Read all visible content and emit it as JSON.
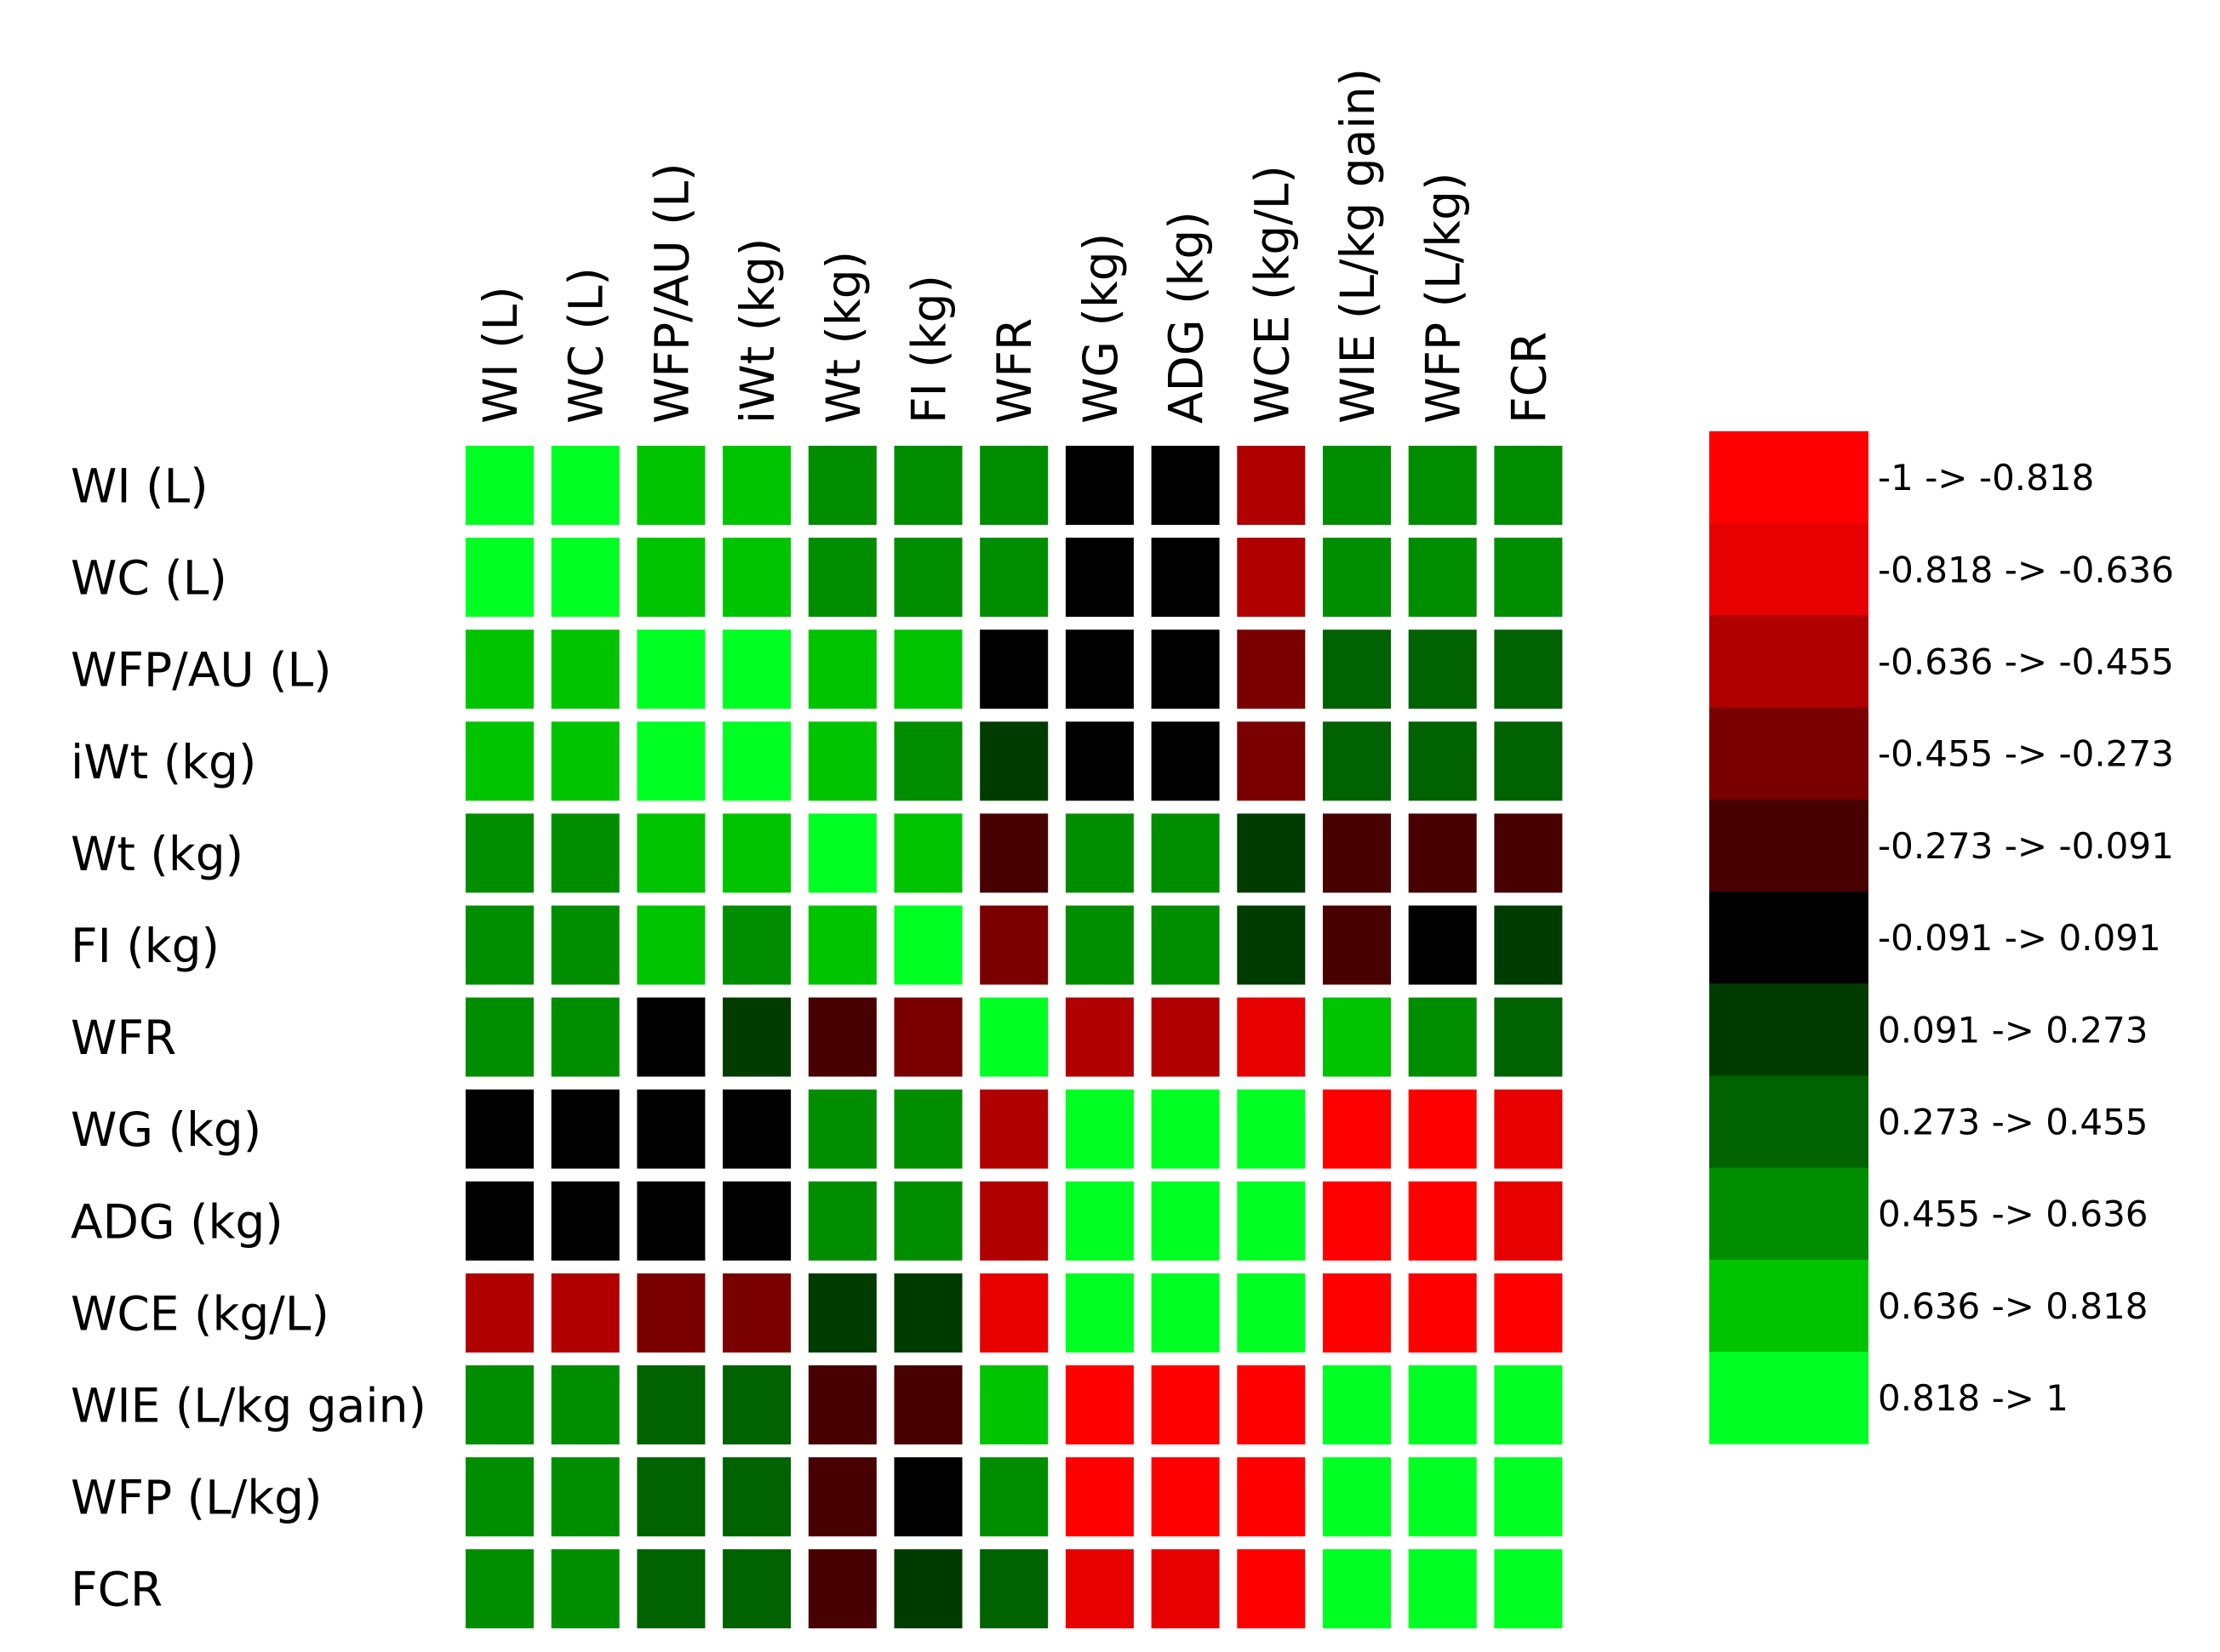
{
  "chart_data": {
    "type": "heatmap",
    "title": "",
    "xlabel": "",
    "ylabel": "",
    "columns": [
      "WI (L)",
      "WC (L)",
      "WFP/AU (L)",
      "iWt (kg)",
      "Wt (kg)",
      "FI (kg)",
      "WFR",
      "WG (kg)",
      "ADG (kg)",
      "WCE (kg/L)",
      "WIE (L/kg gain)",
      "WFP (L/kg)",
      "FCR"
    ],
    "rows": [
      "WI (L)",
      "WC (L)",
      "WFP/AU (L)",
      "iWt (kg)",
      "Wt (kg)",
      "FI (kg)",
      "WFR",
      "WG (kg)",
      "ADG (kg)",
      "WCE (kg/L)",
      "WIE (L/kg gain)",
      "WFP (L/kg)",
      "FCR"
    ],
    "values": [
      [
        0.91,
        0.91,
        0.73,
        0.73,
        0.55,
        0.55,
        0.55,
        0.0,
        0.0,
        -0.55,
        0.55,
        0.55,
        0.55
      ],
      [
        0.91,
        0.91,
        0.73,
        0.73,
        0.55,
        0.55,
        0.55,
        0.0,
        0.0,
        -0.55,
        0.55,
        0.55,
        0.55
      ],
      [
        0.73,
        0.73,
        0.91,
        0.91,
        0.73,
        0.73,
        0.0,
        0.0,
        0.0,
        -0.36,
        0.36,
        0.36,
        0.36
      ],
      [
        0.73,
        0.73,
        0.91,
        0.91,
        0.73,
        0.55,
        0.18,
        0.0,
        0.0,
        -0.36,
        0.36,
        0.36,
        0.36
      ],
      [
        0.55,
        0.55,
        0.73,
        0.73,
        0.91,
        0.73,
        -0.18,
        0.55,
        0.55,
        0.18,
        -0.18,
        -0.18,
        -0.18
      ],
      [
        0.55,
        0.55,
        0.73,
        0.55,
        0.73,
        0.91,
        -0.36,
        0.55,
        0.55,
        0.18,
        -0.18,
        0.0,
        0.18
      ],
      [
        0.55,
        0.55,
        0.0,
        0.18,
        -0.18,
        -0.36,
        0.91,
        -0.55,
        -0.55,
        -0.73,
        0.73,
        0.55,
        0.36
      ],
      [
        0.0,
        0.0,
        0.0,
        0.0,
        0.55,
        0.55,
        -0.55,
        0.91,
        0.91,
        0.91,
        -0.91,
        -0.91,
        -0.73
      ],
      [
        0.0,
        0.0,
        0.0,
        0.0,
        0.55,
        0.55,
        -0.55,
        0.91,
        0.91,
        0.91,
        -0.91,
        -0.91,
        -0.73
      ],
      [
        -0.55,
        -0.55,
        -0.36,
        -0.36,
        0.18,
        0.18,
        -0.73,
        0.91,
        0.91,
        0.91,
        -0.91,
        -0.91,
        -0.91
      ],
      [
        0.55,
        0.55,
        0.36,
        0.36,
        -0.18,
        -0.18,
        0.73,
        -0.91,
        -0.91,
        -0.91,
        0.91,
        0.91,
        0.91
      ],
      [
        0.55,
        0.55,
        0.36,
        0.36,
        -0.18,
        0.0,
        0.55,
        -0.91,
        -0.91,
        -0.91,
        0.91,
        0.91,
        0.91
      ],
      [
        0.55,
        0.55,
        0.36,
        0.36,
        -0.18,
        0.18,
        0.36,
        -0.73,
        -0.73,
        -0.91,
        0.91,
        0.91,
        0.91
      ]
    ],
    "scale_range": [
      -1,
      1
    ],
    "legend_placement": "right",
    "legend_bins": [
      {
        "label": "-1 -> -0.818",
        "color": "#ff0000"
      },
      {
        "label": "-0.818 -> -0.636",
        "color": "#e60000"
      },
      {
        "label": "-0.636 -> -0.455",
        "color": "#b00000"
      },
      {
        "label": "-0.455 -> -0.273",
        "color": "#7a0000"
      },
      {
        "label": "-0.273 -> -0.091",
        "color": "#480000"
      },
      {
        "label": "-0.091 -> 0.091",
        "color": "#000000"
      },
      {
        "label": "0.091 -> 0.273",
        "color": "#003c00"
      },
      {
        "label": "0.273 -> 0.455",
        "color": "#006200"
      },
      {
        "label": "0.455 -> 0.636",
        "color": "#008e00"
      },
      {
        "label": "0.636 -> 0.818",
        "color": "#00c400"
      },
      {
        "label": "0.818 -> 1",
        "color": "#00ff22"
      }
    ]
  }
}
